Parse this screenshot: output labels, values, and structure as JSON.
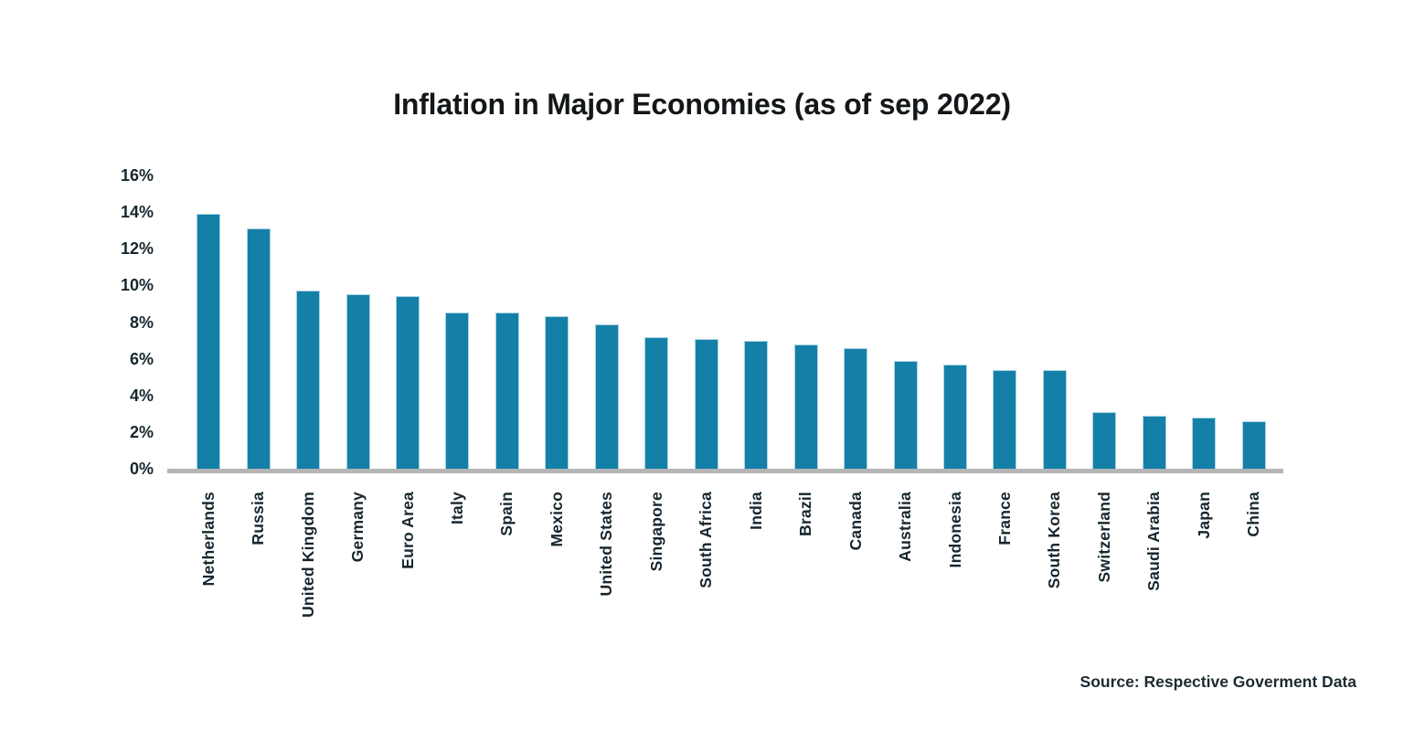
{
  "source_note": "Source: Respective Goverment Data",
  "chart_data": {
    "type": "bar",
    "title": "Inflation in Major Economies (as of sep 2022)",
    "categories": [
      "Netherlands",
      "Russia",
      "United Kingdom",
      "Germany",
      "Euro Area",
      "Italy",
      "Spain",
      "Mexico",
      "United States",
      "Singapore",
      "South Africa",
      "India",
      "Brazil",
      "Canada",
      "Australia",
      "Indonesia",
      "France",
      "South Korea",
      "Switzerland",
      "Saudi Arabia",
      "Japan",
      "China"
    ],
    "values": [
      13.9,
      13.1,
      9.7,
      9.5,
      9.4,
      8.5,
      8.5,
      8.3,
      7.9,
      7.2,
      7.1,
      7.0,
      6.8,
      6.6,
      5.9,
      5.7,
      5.4,
      5.4,
      3.1,
      2.9,
      2.8,
      2.6
    ],
    "xlabel": "",
    "ylabel": "",
    "ylim": [
      0,
      16
    ],
    "yticks": [
      0,
      2,
      4,
      6,
      8,
      10,
      12,
      14,
      16
    ],
    "ytick_suffix": "%",
    "grid": false,
    "legend": false,
    "xlabel_rotation_deg": 90,
    "colors": {
      "bar_fill": "#1580A7",
      "bar_edge": "#A9D3E4",
      "axis_line": "#B5B5B5",
      "tick_text": "#17262e",
      "title_text": "#131719",
      "source_text": "#1c2b33",
      "background": "#ffffff"
    }
  }
}
